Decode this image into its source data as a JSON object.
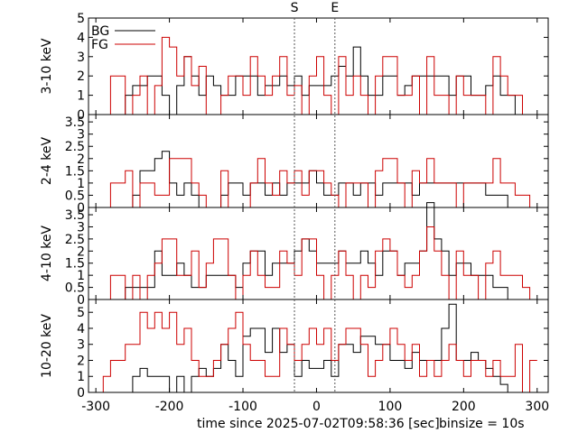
{
  "chart_data": {
    "type": "line",
    "style": "step histogram",
    "x": {
      "label": "time since 2025-07-02T09:58:36 [sec]",
      "ticks": [
        -300,
        -200,
        -100,
        0,
        100,
        200,
        300
      ],
      "range": [
        -310,
        315
      ]
    },
    "binsize_label": "binsize = 10s",
    "markers": [
      {
        "label": "S",
        "x": -30
      },
      {
        "label": "E",
        "x": 25
      }
    ],
    "legend": {
      "placement": "top-left",
      "entries": [
        {
          "name": "BG",
          "color": "#000000"
        },
        {
          "name": "FG",
          "color": "#cc0000"
        }
      ]
    },
    "bins_start": -300,
    "bin_width": 10,
    "panels": [
      {
        "ylabel": "3-10 keV",
        "yrange": [
          0,
          5
        ],
        "yticks": [
          "0",
          "1",
          "2",
          "3",
          "4",
          "5"
        ],
        "series": [
          {
            "name": "BG",
            "color": "#000000",
            "values": [
              0,
              0,
              0,
              0,
              1,
              1.5,
              1.5,
              2,
              2,
              1,
              0,
              1.5,
              3,
              2,
              1,
              2,
              1.5,
              1,
              1,
              2,
              2,
              2,
              1,
              1.5,
              1.5,
              2,
              1.5,
              2,
              1,
              1.5,
              1.5,
              1.5,
              2,
              2.5,
              2,
              3.5,
              2,
              1,
              1,
              2,
              2,
              1,
              1.5,
              2,
              2,
              2,
              2,
              2,
              1,
              2,
              2,
              1,
              1,
              1.5,
              2,
              1,
              1,
              0,
              0,
              0
            ]
          },
          {
            "name": "FG",
            "color": "#cc0000",
            "values": [
              0,
              0,
              2,
              2,
              0,
              1,
              2,
              0,
              1.5,
              4,
              3.5,
              2,
              3,
              1.5,
              2.5,
              0,
              0,
              1,
              2,
              2,
              1,
              3,
              2,
              1,
              2,
              3,
              1,
              1.5,
              0,
              2,
              3,
              1,
              0,
              3,
              1,
              2,
              1,
              0,
              2,
              3,
              3,
              1,
              1,
              2,
              0,
              3,
              1,
              1,
              0,
              2,
              1,
              1,
              1,
              0,
              3,
              2,
              1,
              1,
              0,
              0
            ]
          }
        ]
      },
      {
        "ylabel": "2-4 keV",
        "yrange": [
          0,
          3.8
        ],
        "yticks": [
          "0",
          "0.5",
          "1",
          "1.5",
          "2",
          "2.5",
          "3",
          "3.5"
        ],
        "series": [
          {
            "name": "BG",
            "color": "#000000",
            "values": [
              0,
              0,
              0,
              0,
              0,
              0.5,
              1.5,
              1.5,
              2,
              2.3,
              1,
              0.5,
              1,
              0.5,
              0,
              0,
              0,
              0.5,
              1,
              1,
              0.5,
              1,
              1,
              0.5,
              1,
              0.5,
              1,
              1,
              1,
              1.5,
              1,
              0.5,
              0.5,
              1,
              1,
              0.5,
              1,
              1,
              0.5,
              1,
              1,
              1,
              1,
              0.5,
              1,
              1,
              1,
              1,
              1,
              1,
              1,
              1,
              1,
              0.5,
              0.5,
              0.5,
              0,
              0,
              0,
              0
            ]
          },
          {
            "name": "FG",
            "color": "#cc0000",
            "values": [
              0,
              0,
              1,
              1,
              1.5,
              0,
              1,
              1,
              0.5,
              0.5,
              2,
              2,
              2,
              1,
              0.5,
              0,
              0,
              1.5,
              0,
              0,
              0,
              1,
              2,
              1,
              0.5,
              1.5,
              1,
              1.5,
              0.5,
              1.5,
              1.5,
              1,
              0.5,
              0,
              1,
              1,
              1,
              0,
              1.5,
              2,
              2,
              1,
              0,
              1.5,
              1,
              2,
              1,
              1,
              1,
              0,
              1,
              1,
              1,
              1,
              2,
              1,
              1,
              0.5,
              0.5,
              0
            ]
          }
        ]
      },
      {
        "ylabel": "4-10 keV",
        "yrange": [
          0,
          3.8
        ],
        "yticks": [
          "0",
          "0.5",
          "1",
          "1.5",
          "2",
          "2.5",
          "3",
          "3.5"
        ],
        "series": [
          {
            "name": "BG",
            "color": "#000000",
            "values": [
              0,
              0,
              0,
              0,
              0.5,
              0.5,
              0.5,
              0.5,
              2,
              1,
              1,
              1.5,
              1,
              0.5,
              0.5,
              1,
              1,
              1,
              1,
              0.5,
              1.5,
              2,
              2,
              1,
              1.5,
              1.5,
              1.5,
              2,
              2.5,
              2,
              1.5,
              1.5,
              1.5,
              2,
              1.5,
              1.5,
              2,
              1.5,
              1,
              2,
              2,
              1,
              1.5,
              1.5,
              2,
              4,
              2.5,
              2,
              1,
              1.5,
              1.5,
              1,
              1,
              1,
              0.5,
              0.5,
              0,
              0,
              0,
              0
            ]
          },
          {
            "name": "FG",
            "color": "#cc0000",
            "values": [
              0,
              0,
              1,
              1,
              0,
              1,
              0,
              1,
              1.5,
              2.5,
              2.5,
              1,
              1,
              2,
              0.5,
              1.5,
              2.5,
              2.5,
              1,
              0,
              1,
              2,
              1,
              0.5,
              0.5,
              2,
              1.5,
              1,
              2.5,
              2.5,
              1,
              0,
              1,
              2,
              1,
              0,
              1,
              0.5,
              2,
              2.5,
              2,
              1,
              0.5,
              1,
              2,
              3,
              2,
              1,
              0,
              2,
              1,
              1,
              0,
              1.5,
              2,
              1,
              1,
              1,
              0.5,
              0
            ]
          }
        ]
      },
      {
        "ylabel": "10-20 keV",
        "yrange": [
          0,
          5.8
        ],
        "yticks": [
          "0",
          "1",
          "2",
          "3",
          "4",
          "5"
        ],
        "series": [
          {
            "name": "BG",
            "color": "#000000",
            "values": [
              0,
              0,
              0,
              0,
              0,
              1,
              1.5,
              1,
              1,
              1,
              0,
              1,
              0,
              1,
              1.5,
              1,
              1.5,
              3,
              2,
              1,
              3.5,
              4,
              4,
              2.5,
              4,
              2.5,
              3,
              1,
              2,
              1.5,
              1.5,
              2,
              1,
              3,
              3,
              2.5,
              3.5,
              3.5,
              3,
              3,
              2,
              2,
              1.5,
              2.5,
              2,
              2,
              2,
              4,
              5.5,
              2,
              2,
              2.5,
              2,
              1.5,
              1,
              0.5,
              0,
              0,
              0,
              0
            ]
          },
          {
            "name": "FG",
            "color": "#cc0000",
            "values": [
              0,
              1,
              2,
              2,
              3,
              3,
              5,
              4,
              5,
              4,
              5,
              3,
              4,
              2,
              1,
              1,
              2,
              3,
              4,
              5,
              3,
              2,
              2,
              1,
              1,
              4,
              3,
              2,
              3,
              4,
              3,
              4,
              2,
              3,
              4,
              4,
              3,
              1,
              2,
              3,
              4,
              3,
              2,
              3,
              1,
              2,
              1,
              2,
              3,
              2,
              1,
              2,
              2,
              1,
              2,
              1,
              1,
              3,
              0,
              2
            ]
          }
        ]
      }
    ]
  }
}
